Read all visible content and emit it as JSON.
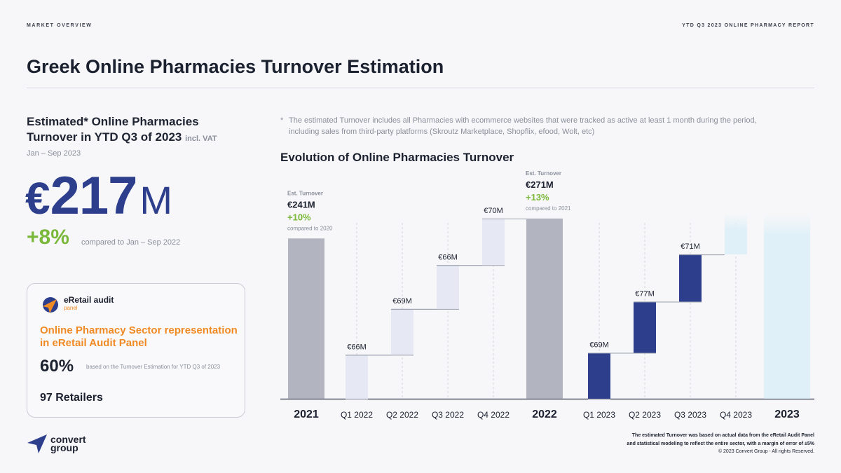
{
  "header": {
    "section": "MARKET OVERVIEW",
    "report": "YTD Q3 2023 ONLINE PHARMACY REPORT",
    "title": "Greek Online Pharmacies Turnover Estimation"
  },
  "kpi": {
    "title": "Estimated* Online Pharmacies Turnover in YTD Q3 of 2023",
    "vat": "incl. VAT",
    "period": "Jan – Sep 2023",
    "currency": "€",
    "value": "217",
    "unit": "M",
    "growth": "+8%",
    "growth_note": "compared to Jan – Sep 2022"
  },
  "card": {
    "logo_text": "eRetail audit",
    "logo_sub": "panel",
    "heading": "Online Pharmacy Sector representation in eRetail Audit Panel",
    "percent": "60%",
    "percent_note": "based on the Turnover Estimation for YTD Q3 of 2023",
    "retailers": "97 Retailers"
  },
  "brand": {
    "name_line1": "convert",
    "name_line2": "group"
  },
  "note": {
    "star": "*",
    "text": "The estimated Turnover includes all Pharmacies with ecommerce websites that were tracked as active at least 1 month during the period, including sales from third-party platforms (Skroutz Marketplace, Shopflix, efood, Wolt, etc)"
  },
  "chart_title": "Evolution of Online Pharmacies Turnover",
  "footer": {
    "line1": "The estimated Turnover was based on actual data from the eRetail Audit Panel",
    "line2": "and statistical modeling to reflect the entire sector, with a margin of error of ±5%",
    "copyright": "© 2023 Convert Group - All rights Reserved."
  },
  "colors": {
    "total_bar": "#b2b5bf",
    "q2022_bar": "#e6e9f3",
    "q2023_bar": "#2c3e8c",
    "q4_2023_bar": "#dff0f8",
    "total_2023_bar": "#dff0f8",
    "accent_green": "#7ab83a",
    "accent_orange": "#f08a24"
  },
  "chart_data": {
    "type": "bar",
    "subtype": "waterfall",
    "unit": "€M",
    "categories": [
      "2021",
      "Q1 2022",
      "Q2 2022",
      "Q3 2022",
      "Q4 2022",
      "2022",
      "Q1 2023",
      "Q2 2023",
      "Q3 2023",
      "Q4 2023",
      "2023"
    ],
    "bars": [
      {
        "category": "2021",
        "kind": "total",
        "value": 241,
        "label": "€241M",
        "caption": "Est. Turnover",
        "growth": "+10%",
        "growth_note": "compared to 2020"
      },
      {
        "category": "Q1 2022",
        "kind": "step",
        "value": 66,
        "label": "€66M"
      },
      {
        "category": "Q2 2022",
        "kind": "step",
        "value": 69,
        "label": "€69M"
      },
      {
        "category": "Q3 2022",
        "kind": "step",
        "value": 66,
        "label": "€66M"
      },
      {
        "category": "Q4 2022",
        "kind": "step",
        "value": 70,
        "label": "€70M"
      },
      {
        "category": "2022",
        "kind": "total",
        "value": 271,
        "label": "€271M",
        "caption": "Est. Turnover",
        "growth": "+13%",
        "growth_note": "compared to 2021"
      },
      {
        "category": "Q1 2023",
        "kind": "step",
        "value": 69,
        "label": "€69M"
      },
      {
        "category": "Q2 2023",
        "kind": "step",
        "value": 77,
        "label": "€77M"
      },
      {
        "category": "Q3 2023",
        "kind": "step",
        "value": 71,
        "label": "€71M"
      },
      {
        "category": "Q4 2023",
        "kind": "step",
        "value": null,
        "label": ""
      },
      {
        "category": "2023",
        "kind": "total",
        "value": null,
        "label": ""
      }
    ],
    "title": "Evolution of Online Pharmacies Turnover",
    "xlabel": "",
    "ylabel": "",
    "grid": false,
    "legend": "none"
  }
}
